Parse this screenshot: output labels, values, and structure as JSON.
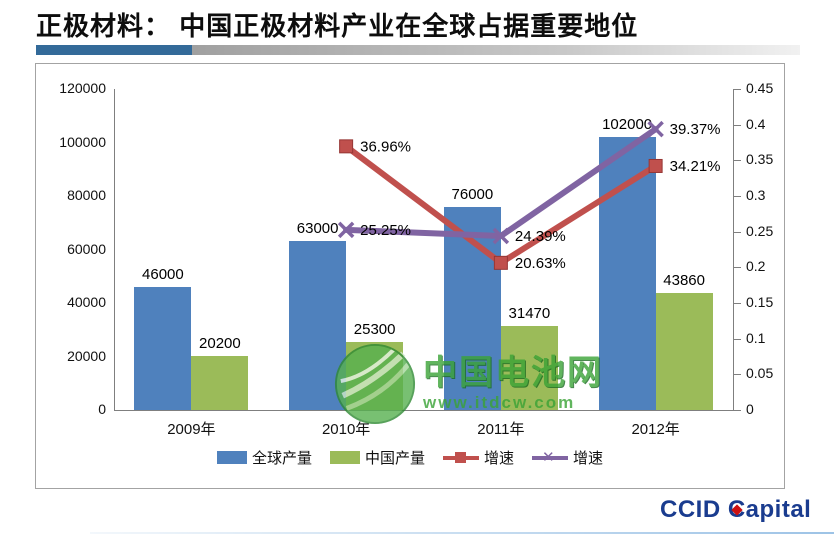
{
  "slide": {
    "title": "正极材料： 中国正极材料产业在全球占据重要地位",
    "accent_bar_color": "#336A99"
  },
  "chart_data": {
    "type": "combo-bar-line",
    "categories": [
      "2009年",
      "2010年",
      "2011年",
      "2012年"
    ],
    "series": [
      {
        "name": "全球产量",
        "type": "bar",
        "color": "#4F81BD",
        "axis": "left",
        "values": [
          46000,
          63000,
          76000,
          102000
        ]
      },
      {
        "name": "中国产量",
        "type": "bar",
        "color": "#9BBB59",
        "axis": "left",
        "values": [
          20200,
          25300,
          31470,
          43860
        ]
      },
      {
        "name": "增速",
        "type": "line",
        "marker": "square",
        "color": "#C0504D",
        "axis": "right",
        "values": [
          null,
          0.3696,
          0.2063,
          0.3421
        ],
        "point_labels": [
          null,
          "36.96%",
          "20.63%",
          "34.21%"
        ]
      },
      {
        "name": "增速",
        "type": "line",
        "marker": "x",
        "color": "#8064A2",
        "axis": "right",
        "values": [
          null,
          0.2525,
          0.2439,
          0.3937
        ],
        "point_labels": [
          null,
          "25.25%",
          "24.39%",
          "39.37%"
        ]
      }
    ],
    "left_axis": {
      "min": 0,
      "max": 120000,
      "ticks": [
        "120000",
        "100000",
        "80000",
        "60000",
        "40000",
        "20000",
        "0"
      ]
    },
    "right_axis": {
      "min": 0,
      "max": 0.45,
      "ticks": [
        "0.45",
        "0.4",
        "0.35",
        "0.3",
        "0.25",
        "0.2",
        "0.15",
        "0.1",
        "0.05",
        "0"
      ]
    },
    "legend": [
      {
        "label": "全球产量",
        "swatch": "bar",
        "color": "#4F81BD"
      },
      {
        "label": "中国产量",
        "swatch": "bar",
        "color": "#9BBB59"
      },
      {
        "label": "增速",
        "swatch": "line-square",
        "color": "#C0504D"
      },
      {
        "label": "增速",
        "swatch": "line-x",
        "color": "#8064A2"
      }
    ],
    "grid": false,
    "legend_position": "bottom"
  },
  "watermark": {
    "name": "中国电池网",
    "url": "www.itdcw.com"
  },
  "footer": {
    "logo_text": "CCID Capital"
  }
}
